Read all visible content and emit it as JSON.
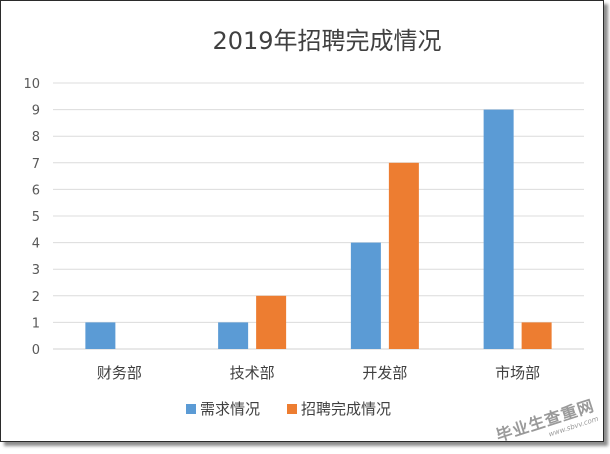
{
  "chart_data": {
    "type": "bar",
    "title": "2019年招聘完成情况",
    "categories": [
      "财务部",
      "技术部",
      "开发部",
      "市场部"
    ],
    "series": [
      {
        "name": "需求情况",
        "color": "#5B9BD5",
        "values": [
          1,
          1,
          4,
          9
        ]
      },
      {
        "name": "招聘完成情况",
        "color": "#ED7D31",
        "values": [
          0,
          2,
          7,
          1
        ]
      }
    ],
    "ylim": [
      0,
      10
    ],
    "yticks": [
      0,
      1,
      2,
      3,
      4,
      5,
      6,
      7,
      8,
      9,
      10
    ],
    "grid": true,
    "legend": "bottom",
    "xlabel": "",
    "ylabel": ""
  },
  "watermark": {
    "main": "毕业生查重网",
    "sub": "www.sbvv.com"
  }
}
